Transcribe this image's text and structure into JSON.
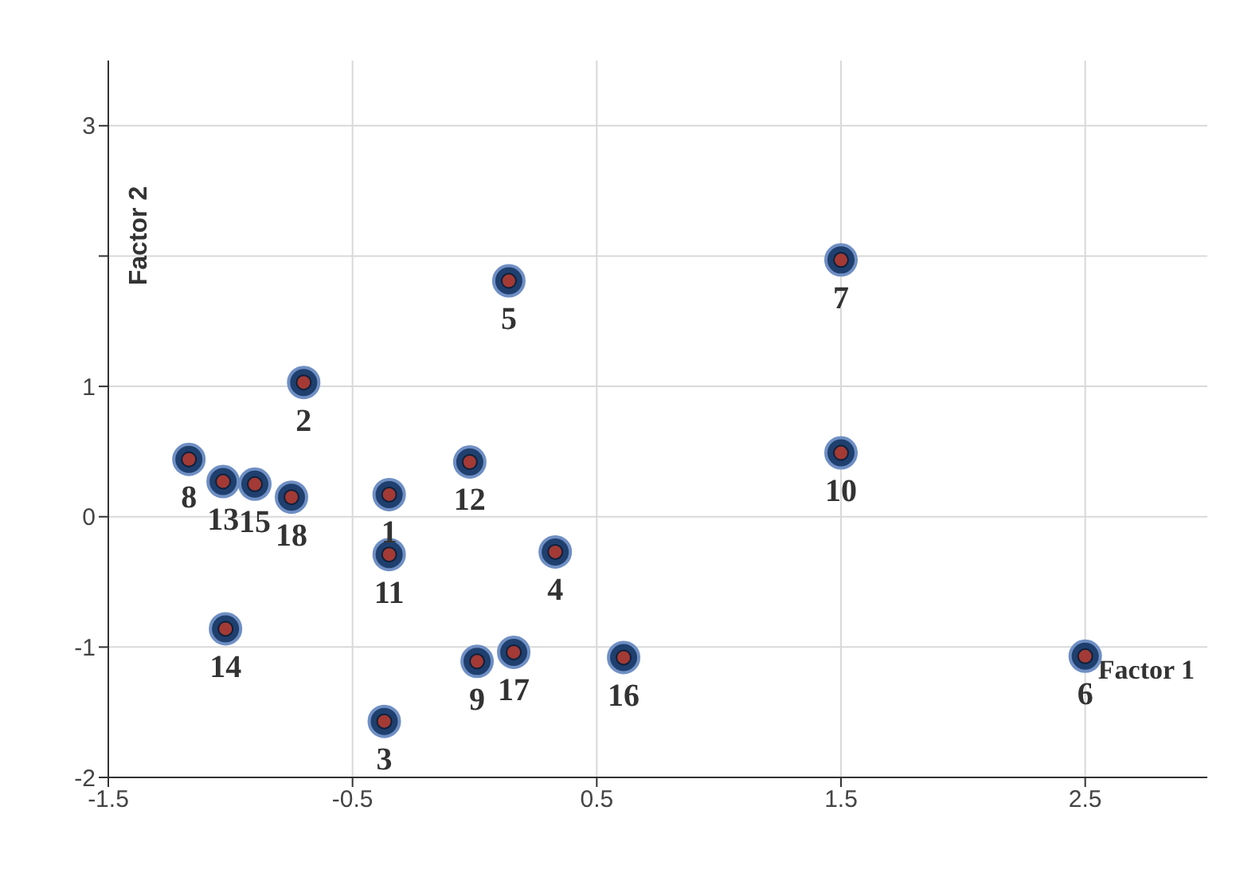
{
  "chart_data": {
    "type": "scatter",
    "xlabel": "Factor 1",
    "ylabel": "Factor 2",
    "x": [
      0.14,
      1.5,
      -0.7,
      -1.17,
      -1.03,
      -0.9,
      -0.75,
      -0.35,
      -0.35,
      -0.02,
      0.33,
      1.5,
      -1.02,
      0.01,
      0.16,
      0.61,
      -0.37,
      2.5
    ],
    "series": [
      {
        "color": "#1f3f6e",
        "values": [
          1.81,
          1.97,
          1.03,
          0.44,
          0.27,
          0.25,
          0.15,
          0.17,
          -0.29,
          0.42,
          -0.27,
          0.49,
          -0.86,
          -1.11,
          -1.04,
          -1.08,
          -1.57,
          -1.07
        ]
      }
    ],
    "annotations": [
      {
        "text": "5",
        "x": 0.14,
        "y": 1.81
      },
      {
        "text": "7",
        "x": 1.5,
        "y": 1.97
      },
      {
        "text": "2",
        "x": -0.7,
        "y": 1.03
      },
      {
        "text": "8",
        "x": -1.17,
        "y": 0.44
      },
      {
        "text": "13",
        "x": -1.03,
        "y": 0.27
      },
      {
        "text": "15",
        "x": -0.9,
        "y": 0.25
      },
      {
        "text": "18",
        "x": -0.75,
        "y": 0.15
      },
      {
        "text": "1",
        "x": -0.35,
        "y": 0.17
      },
      {
        "text": "11",
        "x": -0.35,
        "y": -0.29
      },
      {
        "text": "12",
        "x": -0.02,
        "y": 0.42
      },
      {
        "text": "4",
        "x": 0.33,
        "y": -0.27
      },
      {
        "text": "10",
        "x": 1.5,
        "y": 0.49
      },
      {
        "text": "14",
        "x": -1.02,
        "y": -0.86
      },
      {
        "text": "9",
        "x": 0.01,
        "y": -1.11
      },
      {
        "text": "17",
        "x": 0.16,
        "y": -1.04
      },
      {
        "text": "16",
        "x": 0.61,
        "y": -1.08
      },
      {
        "text": "3",
        "x": -0.37,
        "y": -1.57
      },
      {
        "text": "6",
        "x": 2.5,
        "y": -1.07
      }
    ],
    "xlim": [
      -1.5,
      3
    ],
    "xticks": [
      -1.5,
      -0.5,
      0.5,
      1.5,
      2.5
    ],
    "ylim": [
      -2,
      3.5
    ],
    "yticks": [
      -2,
      -1,
      0,
      1,
      {
        "value": 2,
        "label": null
      },
      3
    ],
    "grid": true,
    "marker": "circle"
  }
}
